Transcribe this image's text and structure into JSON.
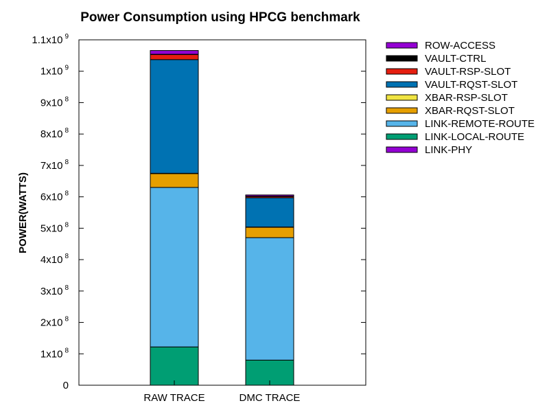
{
  "chart_data": {
    "type": "bar",
    "stacked": true,
    "title": "Power Consumption using HPCG benchmark",
    "xlabel": "",
    "ylabel": "POWER(WATTS)",
    "ylim": [
      0,
      1100000000
    ],
    "grid": false,
    "legend_position": "top-right outside",
    "categories": [
      "RAW TRACE",
      "DMC TRACE"
    ],
    "y_ticks": [
      {
        "value": 0,
        "label": "0",
        "exp": ""
      },
      {
        "value": 100000000,
        "label": "1x10",
        "exp": "8"
      },
      {
        "value": 200000000,
        "label": "2x10",
        "exp": "8"
      },
      {
        "value": 300000000,
        "label": "3x10",
        "exp": "8"
      },
      {
        "value": 400000000,
        "label": "4x10",
        "exp": "8"
      },
      {
        "value": 500000000,
        "label": "5x10",
        "exp": "8"
      },
      {
        "value": 600000000,
        "label": "6x10",
        "exp": "8"
      },
      {
        "value": 700000000,
        "label": "7x10",
        "exp": "8"
      },
      {
        "value": 800000000,
        "label": "8x10",
        "exp": "8"
      },
      {
        "value": 900000000,
        "label": "9x10",
        "exp": "8"
      },
      {
        "value": 1000000000,
        "label": "1x10",
        "exp": "9"
      },
      {
        "value": 1100000000,
        "label": "1.1x10",
        "exp": "9"
      }
    ],
    "series": [
      {
        "name": "LINK-PHY",
        "color": "#9400d3",
        "values": [
          0,
          0
        ]
      },
      {
        "name": "LINK-LOCAL-ROUTE",
        "color": "#009e73",
        "values": [
          122000000,
          80000000
        ]
      },
      {
        "name": "LINK-REMOTE-ROUTE",
        "color": "#56b4e9",
        "values": [
          508000000,
          390000000
        ]
      },
      {
        "name": "XBAR-RQST-SLOT",
        "color": "#e69f00",
        "values": [
          44000000,
          33000000
        ]
      },
      {
        "name": "XBAR-RSP-SLOT",
        "color": "#f0e442",
        "values": [
          1000000,
          1000000
        ]
      },
      {
        "name": "VAULT-RQST-SLOT",
        "color": "#0072b2",
        "values": [
          362000000,
          93000000
        ]
      },
      {
        "name": "VAULT-RSP-SLOT",
        "color": "#e51e10",
        "values": [
          16000000,
          4000000
        ]
      },
      {
        "name": "VAULT-CTRL",
        "color": "#000000",
        "values": [
          1000000,
          1000000
        ]
      },
      {
        "name": "ROW-ACCESS",
        "color": "#9400d3",
        "values": [
          12000000,
          4000000
        ]
      }
    ],
    "legend_order": [
      "ROW-ACCESS",
      "VAULT-CTRL",
      "VAULT-RSP-SLOT",
      "VAULT-RQST-SLOT",
      "XBAR-RSP-SLOT",
      "XBAR-RQST-SLOT",
      "LINK-REMOTE-ROUTE",
      "LINK-LOCAL-ROUTE",
      "LINK-PHY"
    ]
  }
}
